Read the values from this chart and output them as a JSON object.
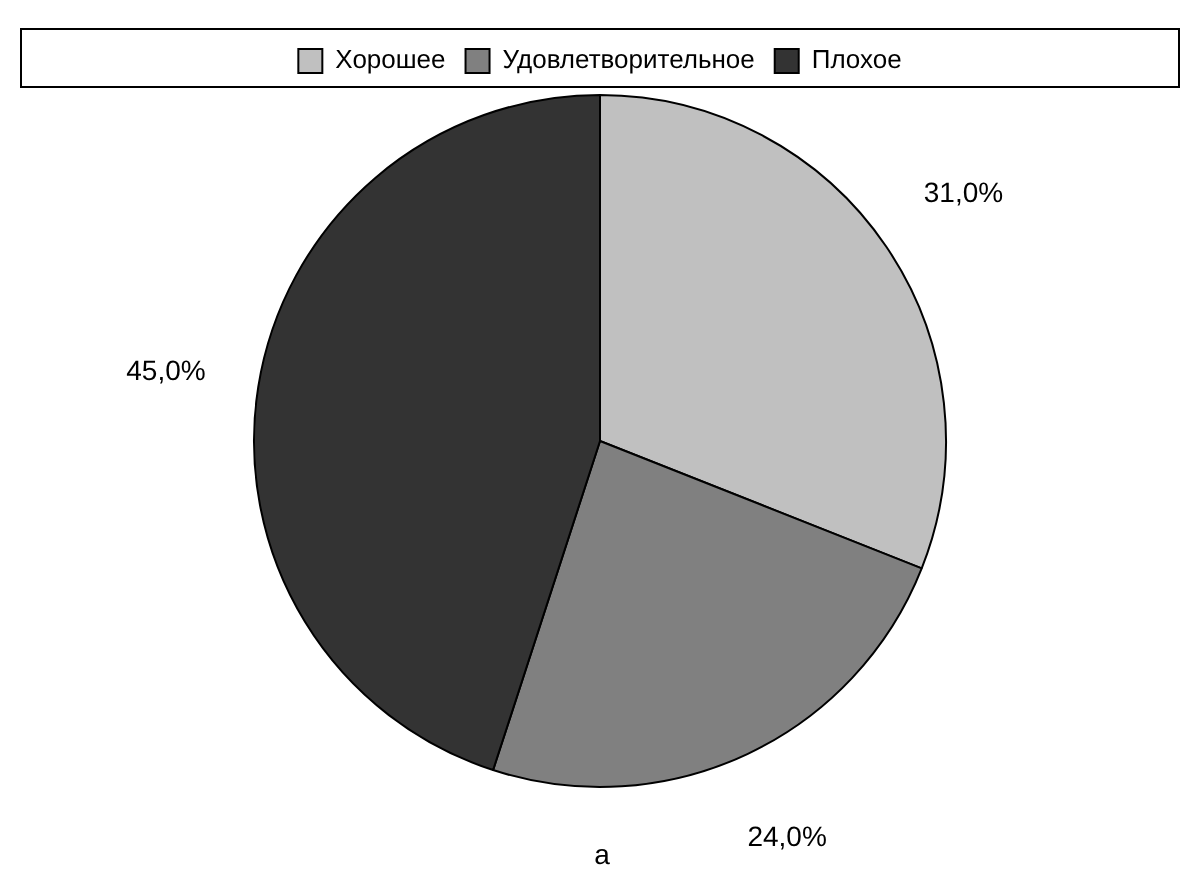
{
  "chart_data": {
    "type": "pie",
    "categories": [
      "Хорошее",
      "Удовлетворительное",
      "Плохое"
    ],
    "values": [
      31,
      24,
      45
    ],
    "colors": [
      "#c0c0c0",
      "#808080",
      "#333333"
    ],
    "value_labels": [
      "31,0%",
      "24,0%",
      "45,0%"
    ],
    "legend": "top",
    "annotations": [
      "а"
    ]
  }
}
